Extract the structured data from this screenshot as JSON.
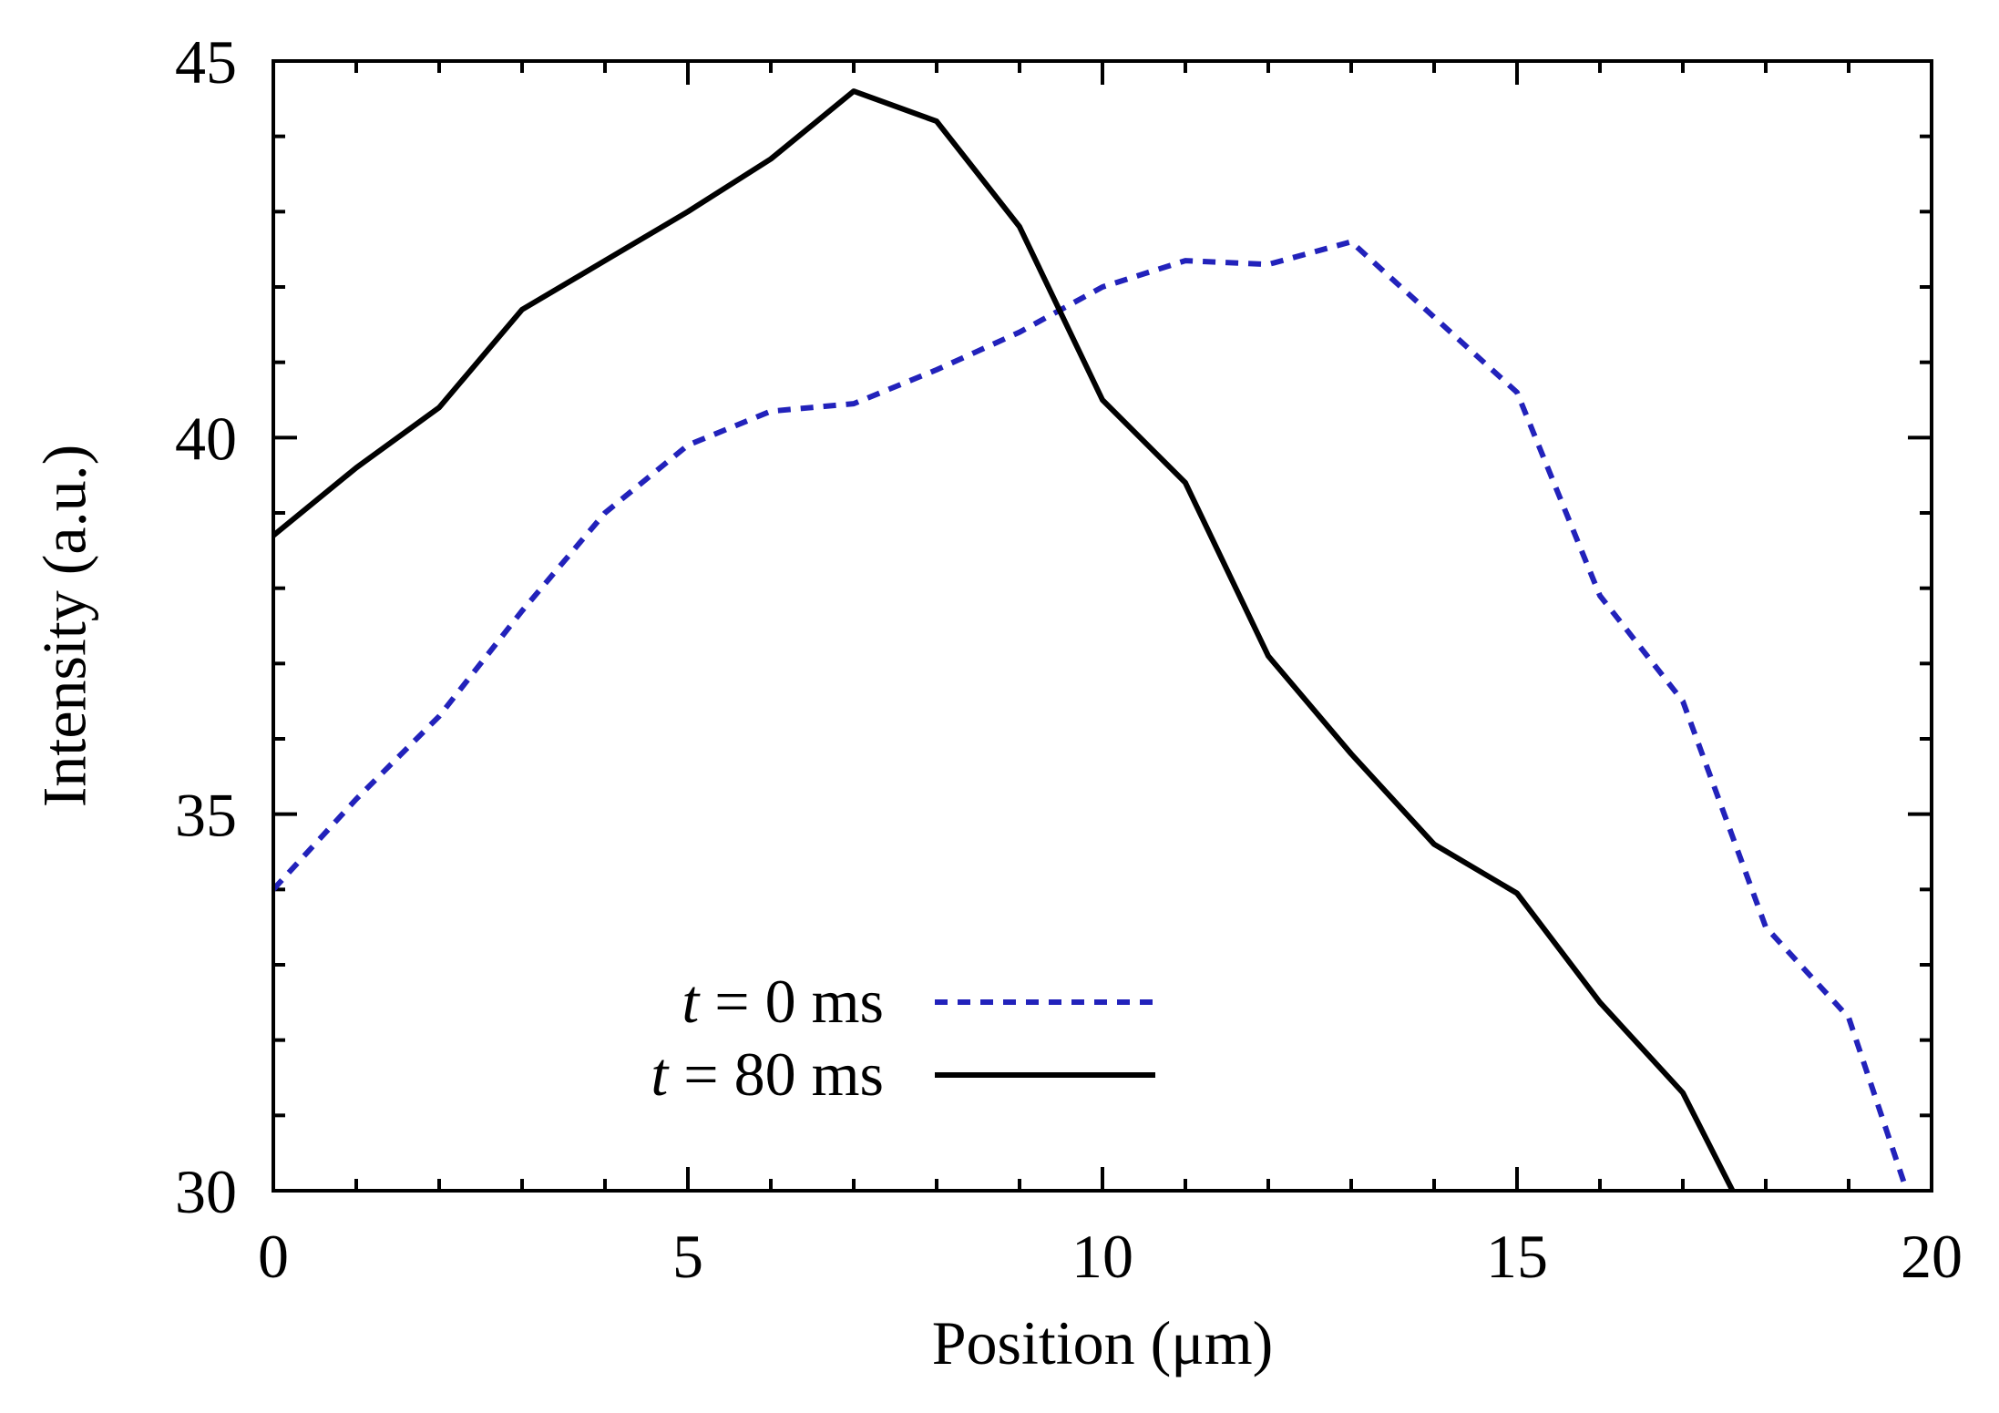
{
  "chart_data": {
    "type": "line",
    "title": "",
    "xlabel": "Position (μm)",
    "ylabel": "Intensity (a.u.)",
    "xlim": [
      0,
      20
    ],
    "ylim": [
      30,
      45
    ],
    "xticks": [
      0,
      5,
      10,
      15,
      20
    ],
    "yticks": [
      30,
      35,
      40,
      45
    ],
    "xtick_labels": [
      "0",
      "5",
      "10",
      "15",
      "20"
    ],
    "ytick_labels": [
      "30",
      "35",
      "40",
      "45"
    ],
    "grid": false,
    "legend_position": "bottom-center",
    "series": [
      {
        "name": "t = 0 ms",
        "legend_var": "t",
        "legend_rest": " = 0 ms",
        "style": "dotted",
        "color": "#2222bb",
        "x": [
          0,
          1,
          2,
          3,
          4,
          5,
          6,
          7,
          8,
          9,
          10,
          11,
          12,
          13,
          14,
          15,
          16,
          17,
          18,
          19,
          19.7
        ],
        "y": [
          34.0,
          35.2,
          36.3,
          37.7,
          39.0,
          39.9,
          40.35,
          40.45,
          40.9,
          41.4,
          42.0,
          42.35,
          42.3,
          42.6,
          41.6,
          40.6,
          37.9,
          36.5,
          33.5,
          32.3,
          30.0
        ]
      },
      {
        "name": "t = 80 ms",
        "legend_var": "t",
        "legend_rest": " = 80 ms",
        "style": "solid",
        "color": "#000000",
        "x": [
          0,
          1,
          2,
          3,
          4,
          5,
          6,
          7,
          8,
          9,
          10,
          11,
          12,
          13,
          14,
          15,
          16,
          17,
          17.6
        ],
        "y": [
          38.7,
          39.6,
          40.4,
          41.7,
          42.35,
          43.0,
          43.7,
          44.6,
          44.2,
          42.8,
          40.5,
          39.4,
          37.1,
          35.8,
          34.6,
          33.95,
          32.5,
          31.3,
          30.0
        ]
      }
    ]
  }
}
